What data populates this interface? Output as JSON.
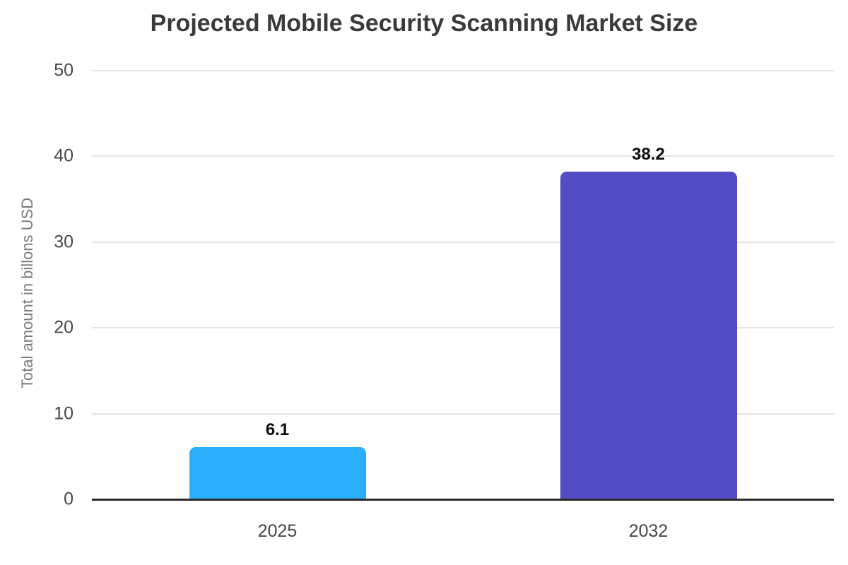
{
  "chart_data": {
    "type": "bar",
    "title": "Projected Mobile Security Scanning Market Size",
    "categories": [
      "2025",
      "2032"
    ],
    "values": [
      6.1,
      38.2
    ],
    "value_labels": [
      "6.1",
      "38.2"
    ],
    "bar_colors": [
      "#2BAEFC",
      "#524DC4"
    ],
    "xlabel": "",
    "ylabel": "Total amount in billons USD",
    "ylim": [
      0,
      50
    ],
    "yticks": [
      0,
      10,
      20,
      30,
      40,
      50
    ],
    "grid": "horizontal",
    "legend": "none",
    "colors": {
      "background": "#FFFFFF",
      "title": "#3A3A3A",
      "tick_label": "#474747",
      "axis_label": "#7A7A7A",
      "gridline": "#E4E4E4",
      "axis_line": "#2B2B2B",
      "value_label": "#0D0D0D"
    }
  }
}
